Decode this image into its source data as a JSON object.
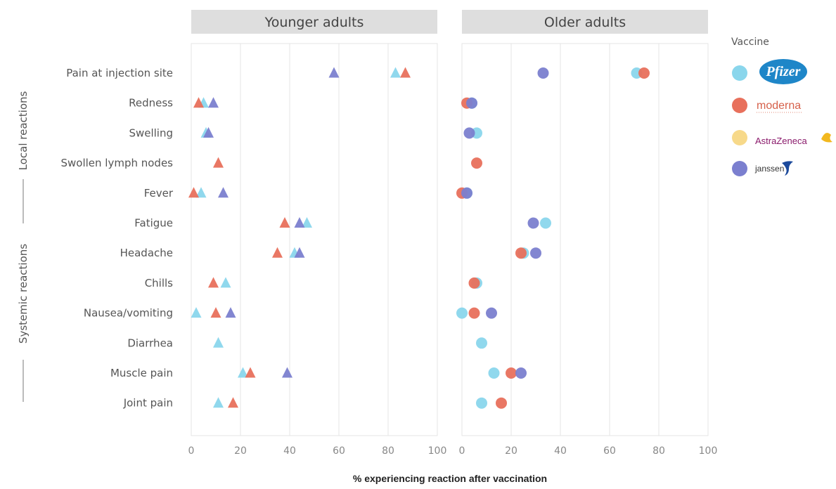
{
  "chart_data": {
    "type": "scatter",
    "xlabel": "% experiencing reaction after vaccination",
    "xlim": [
      0,
      100
    ],
    "xticks": [
      "0",
      "20",
      "40",
      "60",
      "80",
      "100"
    ],
    "grid": true,
    "categories": [
      "Pain at injection site",
      "Redness",
      "Swelling",
      "Swollen lymph nodes",
      "Fever",
      "Fatigue",
      "Headache",
      "Chills",
      "Nausea/vomiting",
      "Diarrhea",
      "Muscle pain",
      "Joint pain"
    ],
    "groups": [
      {
        "label": "Local reactions"
      },
      {
        "label": "Systemic reactions"
      }
    ],
    "colors": {
      "Pfizer": "#8ad6ec",
      "Moderna": "#e8705c",
      "AstraZeneca": "#f7d98a",
      "Janssen": "#7b7fcf"
    },
    "panels": [
      {
        "title": "Younger adults",
        "marker": "triangle",
        "series": [
          {
            "vaccine": "Pfizer",
            "values": [
              83,
              5,
              6,
              null,
              4,
              47,
              42,
              14,
              2,
              11,
              21,
              11
            ]
          },
          {
            "vaccine": "Moderna",
            "values": [
              87,
              3,
              null,
              11,
              1,
              38,
              35,
              9,
              10,
              null,
              24,
              17
            ]
          },
          {
            "vaccine": "Janssen",
            "values": [
              58,
              9,
              7,
              null,
              13,
              44,
              44,
              null,
              16,
              null,
              39,
              null
            ]
          }
        ]
      },
      {
        "title": "Older adults",
        "marker": "circle",
        "series": [
          {
            "vaccine": "Pfizer",
            "values": [
              71,
              4,
              6,
              null,
              2,
              34,
              25,
              6,
              0,
              8,
              13,
              8
            ]
          },
          {
            "vaccine": "Moderna",
            "values": [
              74,
              2,
              null,
              6,
              0,
              null,
              24,
              5,
              5,
              null,
              20,
              16
            ]
          },
          {
            "vaccine": "Janssen",
            "values": [
              33,
              4,
              3,
              null,
              2,
              29,
              30,
              null,
              12,
              null,
              24,
              null
            ]
          }
        ]
      }
    ],
    "legend": {
      "title": "Vaccine",
      "position": "right",
      "entries": [
        {
          "vaccine": "Pfizer",
          "label": "Pfizer"
        },
        {
          "vaccine": "Moderna",
          "label": "moderna"
        },
        {
          "vaccine": "AstraZeneca",
          "label": "AstraZeneca"
        },
        {
          "vaccine": "Janssen",
          "label": "janssen"
        }
      ]
    }
  }
}
